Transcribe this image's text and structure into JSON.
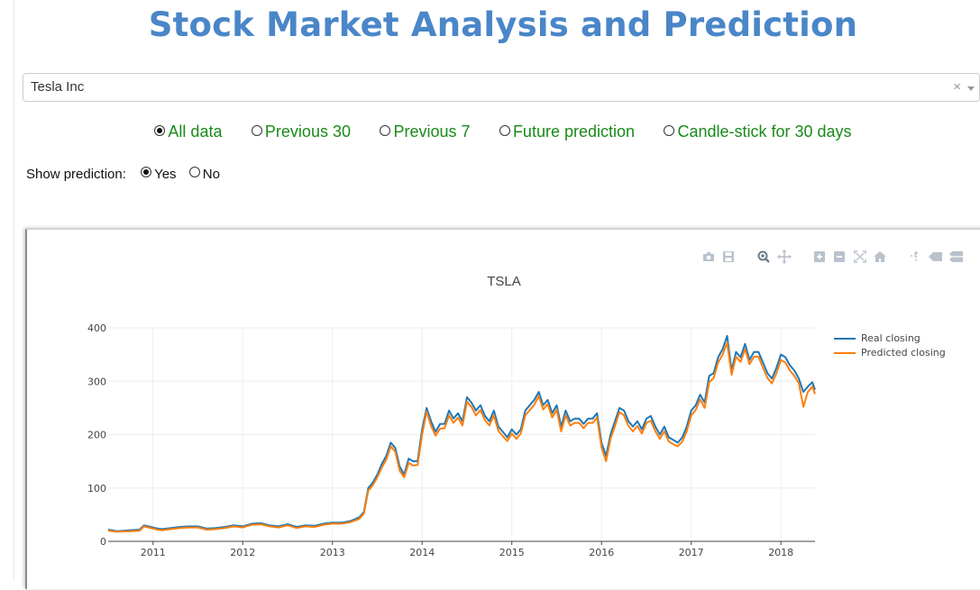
{
  "header": {
    "title": "Stock Market Analysis and Prediction"
  },
  "stock_select": {
    "value": "Tesla Inc",
    "clear_glyph": "×"
  },
  "view_options": {
    "selected": "All data",
    "items": [
      {
        "label": "All data",
        "checked": true
      },
      {
        "label": "Previous 30",
        "checked": false
      },
      {
        "label": "Previous 7",
        "checked": false
      },
      {
        "label": "Future prediction",
        "checked": false
      },
      {
        "label": "Candle-stick for 30 days",
        "checked": false
      }
    ]
  },
  "prediction_toggle": {
    "label": "Show prediction:",
    "options": [
      {
        "label": "Yes",
        "checked": true
      },
      {
        "label": "No",
        "checked": false
      }
    ]
  },
  "modebar": {
    "icons": [
      "camera-icon",
      "save-icon",
      "zoom-icon",
      "pan-icon",
      "zoom-in-icon",
      "zoom-out-icon",
      "autoscale-icon",
      "reset-axes-icon",
      "spike-lines-icon",
      "hover-closest-icon",
      "hover-compare-icon",
      "plotly-logo-icon"
    ]
  },
  "colors": {
    "title": "#4a86c8",
    "radio_text": "#1a8a1a",
    "real": "#1f77b4",
    "predicted": "#ff7f0e"
  },
  "chart_data": {
    "type": "line",
    "title": "TSLA",
    "xlabel": "",
    "ylabel": "",
    "xlim": [
      2010.5,
      2018.38
    ],
    "ylim": [
      0,
      400
    ],
    "x_ticks": [
      2011,
      2012,
      2013,
      2014,
      2015,
      2016,
      2017,
      2018
    ],
    "x_tick_labels": [
      "2011",
      "2012",
      "2013",
      "2014",
      "2015",
      "2016",
      "2017",
      "2018"
    ],
    "y_ticks": [
      0,
      100,
      200,
      300,
      400
    ],
    "y_tick_labels": [
      "0",
      "100",
      "200",
      "300",
      "400"
    ],
    "grid": true,
    "legend_position": "top-right",
    "series": [
      {
        "name": "Real closing",
        "x": [
          2010.5,
          2010.6,
          2010.75,
          2010.85,
          2010.9,
          2011.0,
          2011.05,
          2011.1,
          2011.2,
          2011.3,
          2011.4,
          2011.5,
          2011.6,
          2011.7,
          2011.8,
          2011.9,
          2012.0,
          2012.1,
          2012.2,
          2012.3,
          2012.4,
          2012.5,
          2012.6,
          2012.7,
          2012.8,
          2012.9,
          2013.0,
          2013.1,
          2013.2,
          2013.3,
          2013.35,
          2013.4,
          2013.45,
          2013.5,
          2013.55,
          2013.6,
          2013.65,
          2013.7,
          2013.75,
          2013.8,
          2013.85,
          2013.9,
          2013.95,
          2014.0,
          2014.05,
          2014.1,
          2014.15,
          2014.2,
          2014.25,
          2014.3,
          2014.35,
          2014.4,
          2014.45,
          2014.5,
          2014.55,
          2014.6,
          2014.65,
          2014.7,
          2014.75,
          2014.8,
          2014.85,
          2014.9,
          2014.95,
          2015.0,
          2015.05,
          2015.1,
          2015.15,
          2015.2,
          2015.25,
          2015.3,
          2015.35,
          2015.4,
          2015.45,
          2015.5,
          2015.55,
          2015.6,
          2015.65,
          2015.7,
          2015.75,
          2015.8,
          2015.85,
          2015.9,
          2015.95,
          2016.0,
          2016.05,
          2016.1,
          2016.15,
          2016.2,
          2016.25,
          2016.3,
          2016.35,
          2016.4,
          2016.45,
          2016.5,
          2016.55,
          2016.6,
          2016.65,
          2016.7,
          2016.75,
          2016.8,
          2016.85,
          2016.9,
          2016.95,
          2017.0,
          2017.05,
          2017.1,
          2017.15,
          2017.2,
          2017.25,
          2017.3,
          2017.35,
          2017.4,
          2017.45,
          2017.5,
          2017.55,
          2017.6,
          2017.65,
          2017.7,
          2017.75,
          2017.8,
          2017.85,
          2017.9,
          2017.95,
          2018.0,
          2018.05,
          2018.1,
          2018.15,
          2018.2,
          2018.25,
          2018.3,
          2018.35,
          2018.38
        ],
        "y": [
          22,
          19,
          21,
          22,
          30,
          26,
          24,
          23,
          25,
          27,
          28,
          28,
          24,
          25,
          27,
          30,
          28,
          33,
          34,
          30,
          28,
          32,
          27,
          30,
          29,
          33,
          35,
          35,
          38,
          45,
          55,
          100,
          110,
          125,
          145,
          160,
          185,
          175,
          140,
          125,
          155,
          150,
          150,
          210,
          250,
          225,
          205,
          220,
          220,
          245,
          230,
          240,
          225,
          270,
          260,
          245,
          255,
          235,
          225,
          245,
          215,
          205,
          195,
          210,
          200,
          210,
          245,
          255,
          265,
          280,
          255,
          265,
          240,
          255,
          215,
          245,
          225,
          230,
          230,
          220,
          230,
          230,
          240,
          185,
          160,
          200,
          225,
          250,
          245,
          225,
          215,
          225,
          210,
          230,
          235,
          215,
          200,
          215,
          195,
          190,
          185,
          195,
          215,
          245,
          255,
          275,
          260,
          310,
          315,
          345,
          360,
          385,
          320,
          355,
          345,
          370,
          340,
          355,
          355,
          335,
          315,
          305,
          325,
          350,
          345,
          330,
          320,
          305,
          280,
          290,
          298,
          284
        ]
      },
      {
        "name": "Predicted closing",
        "x": [
          2010.5,
          2010.6,
          2010.75,
          2010.85,
          2010.9,
          2011.0,
          2011.05,
          2011.1,
          2011.2,
          2011.3,
          2011.4,
          2011.5,
          2011.6,
          2011.7,
          2011.8,
          2011.9,
          2012.0,
          2012.1,
          2012.2,
          2012.3,
          2012.4,
          2012.5,
          2012.6,
          2012.7,
          2012.8,
          2012.9,
          2013.0,
          2013.1,
          2013.2,
          2013.3,
          2013.35,
          2013.4,
          2013.45,
          2013.5,
          2013.55,
          2013.6,
          2013.65,
          2013.7,
          2013.75,
          2013.8,
          2013.85,
          2013.9,
          2013.95,
          2014.0,
          2014.05,
          2014.1,
          2014.15,
          2014.2,
          2014.25,
          2014.3,
          2014.35,
          2014.4,
          2014.45,
          2014.5,
          2014.55,
          2014.6,
          2014.65,
          2014.7,
          2014.75,
          2014.8,
          2014.85,
          2014.9,
          2014.95,
          2015.0,
          2015.05,
          2015.1,
          2015.15,
          2015.2,
          2015.25,
          2015.3,
          2015.35,
          2015.4,
          2015.45,
          2015.5,
          2015.55,
          2015.6,
          2015.65,
          2015.7,
          2015.75,
          2015.8,
          2015.85,
          2015.9,
          2015.95,
          2016.0,
          2016.05,
          2016.1,
          2016.15,
          2016.2,
          2016.25,
          2016.3,
          2016.35,
          2016.4,
          2016.45,
          2016.5,
          2016.55,
          2016.6,
          2016.65,
          2016.7,
          2016.75,
          2016.8,
          2016.85,
          2016.9,
          2016.95,
          2017.0,
          2017.05,
          2017.1,
          2017.15,
          2017.2,
          2017.25,
          2017.3,
          2017.35,
          2017.4,
          2017.45,
          2017.5,
          2017.55,
          2017.6,
          2017.65,
          2017.7,
          2017.75,
          2017.8,
          2017.85,
          2017.9,
          2017.95,
          2018.0,
          2018.05,
          2018.1,
          2018.15,
          2018.2,
          2018.25,
          2018.3,
          2018.35,
          2018.38
        ],
        "y": [
          20,
          18,
          19,
          20,
          28,
          24,
          22,
          21,
          23,
          25,
          26,
          26,
          22,
          23,
          25,
          28,
          26,
          31,
          32,
          28,
          26,
          30,
          25,
          28,
          27,
          31,
          33,
          33,
          36,
          42,
          52,
          95,
          105,
          120,
          138,
          153,
          178,
          168,
          132,
          120,
          147,
          142,
          143,
          200,
          243,
          216,
          198,
          211,
          212,
          236,
          222,
          232,
          217,
          262,
          252,
          236,
          246,
          227,
          217,
          236,
          207,
          197,
          188,
          202,
          192,
          202,
          236,
          246,
          256,
          272,
          247,
          257,
          232,
          247,
          206,
          236,
          217,
          222,
          222,
          212,
          222,
          222,
          232,
          176,
          150,
          192,
          216,
          242,
          236,
          216,
          206,
          216,
          202,
          222,
          226,
          206,
          192,
          206,
          187,
          182,
          178,
          187,
          206,
          236,
          246,
          266,
          250,
          298,
          306,
          335,
          350,
          372,
          312,
          346,
          336,
          360,
          332,
          346,
          346,
          325,
          306,
          296,
          315,
          340,
          335,
          320,
          310,
          296,
          252,
          280,
          290,
          276
        ]
      }
    ]
  }
}
